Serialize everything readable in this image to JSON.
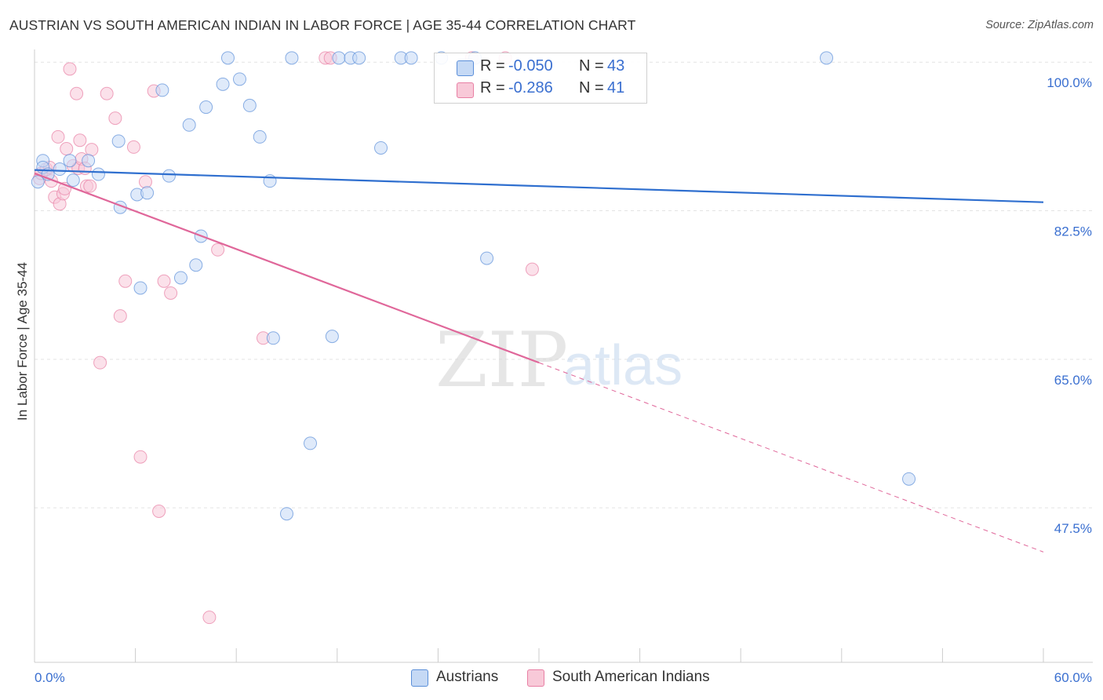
{
  "title": "AUSTRIAN VS SOUTH AMERICAN INDIAN IN LABOR FORCE | AGE 35-44 CORRELATION CHART",
  "source": "Source: ZipAtlas.com",
  "watermark": {
    "zip": "ZIP",
    "atlas": "atlas"
  },
  "legend": {
    "rows": [
      {
        "r_label": "R =",
        "r_value": "-0.050",
        "n_label": "N =",
        "n_value": "43"
      },
      {
        "r_label": "R =",
        "r_value": "-0.286",
        "n_label": "N =",
        "n_value": "41"
      }
    ]
  },
  "colors": {
    "austrians": "#5b8fd9",
    "austrians_fill": "#c5d9f5",
    "south_american_indians": "#e87fa4",
    "south_american_indians_fill": "#f8c9d8",
    "axis_label": "#3a6fd0",
    "grid": "#e3e3e3"
  },
  "chart_data": {
    "type": "scatter",
    "title": "AUSTRIAN VS SOUTH AMERICAN INDIAN IN LABOR FORCE | AGE 35-44 CORRELATION CHART",
    "xlabel": "",
    "ylabel": "In Labor Force | Age 35-44",
    "xlim": [
      0,
      60
    ],
    "ylim": [
      29.3,
      101.5
    ],
    "x_tick_labels": [
      "0.0%",
      "60.0%"
    ],
    "y_ticks": [
      47.5,
      65.0,
      82.5,
      100.0
    ],
    "y_tick_labels": [
      "47.5%",
      "65.0%",
      "82.5%",
      "100.0%"
    ],
    "grid": true,
    "legend_position": "bottom-center",
    "series": [
      {
        "name": "Austrians",
        "r": -0.05,
        "n": 43,
        "trend": {
          "x0": 0,
          "y0": 87.3,
          "x1": 60,
          "y1": 83.5
        },
        "points": [
          [
            0.2,
            85.9
          ],
          [
            0.5,
            88.4
          ],
          [
            0.5,
            87.6
          ],
          [
            0.8,
            86.8
          ],
          [
            1.5,
            87.4
          ],
          [
            2.1,
            88.4
          ],
          [
            3.2,
            88.4
          ],
          [
            2.3,
            86.1
          ],
          [
            3.8,
            86.8
          ],
          [
            5.0,
            90.7
          ],
          [
            6.1,
            84.4
          ],
          [
            5.1,
            82.9
          ],
          [
            6.7,
            84.6
          ],
          [
            6.3,
            73.4
          ],
          [
            7.6,
            96.7
          ],
          [
            8.0,
            86.6
          ],
          [
            8.7,
            74.6
          ],
          [
            9.2,
            92.6
          ],
          [
            9.6,
            76.1
          ],
          [
            9.9,
            79.5
          ],
          [
            10.2,
            94.7
          ],
          [
            11.2,
            97.4
          ],
          [
            11.5,
            100.5
          ],
          [
            12.2,
            98.0
          ],
          [
            12.8,
            94.9
          ],
          [
            13.4,
            91.2
          ],
          [
            14.0,
            86.0
          ],
          [
            14.2,
            67.5
          ],
          [
            15.3,
            100.5
          ],
          [
            15.0,
            46.8
          ],
          [
            16.4,
            55.1
          ],
          [
            17.7,
            67.7
          ],
          [
            18.1,
            100.5
          ],
          [
            18.8,
            100.5
          ],
          [
            19.3,
            100.5
          ],
          [
            20.6,
            89.9
          ],
          [
            21.8,
            100.5
          ],
          [
            22.4,
            100.5
          ],
          [
            24.2,
            100.5
          ],
          [
            26.2,
            100.5
          ],
          [
            26.9,
            76.9
          ],
          [
            47.1,
            100.5
          ],
          [
            52.0,
            50.9
          ]
        ]
      },
      {
        "name": "South American Indians",
        "r": -0.286,
        "n": 41,
        "trend": {
          "x0": 0,
          "y0": 86.9,
          "x1": 60,
          "y1": 42.3
        },
        "trend_solid_until_x": 30.0,
        "points": [
          [
            0.3,
            86.3
          ],
          [
            0.4,
            86.9
          ],
          [
            0.7,
            87.4
          ],
          [
            0.9,
            87.6
          ],
          [
            1.0,
            86.0
          ],
          [
            1.2,
            84.1
          ],
          [
            1.4,
            91.2
          ],
          [
            1.5,
            83.3
          ],
          [
            1.7,
            84.5
          ],
          [
            1.8,
            85.1
          ],
          [
            1.9,
            89.8
          ],
          [
            2.1,
            99.2
          ],
          [
            2.3,
            87.8
          ],
          [
            2.5,
            96.3
          ],
          [
            2.6,
            87.5
          ],
          [
            2.7,
            90.8
          ],
          [
            2.8,
            88.6
          ],
          [
            3.0,
            87.5
          ],
          [
            3.1,
            85.4
          ],
          [
            3.3,
            85.4
          ],
          [
            3.4,
            89.7
          ],
          [
            3.9,
            64.6
          ],
          [
            4.3,
            96.3
          ],
          [
            4.8,
            93.4
          ],
          [
            5.1,
            70.1
          ],
          [
            5.4,
            74.2
          ],
          [
            5.9,
            90.0
          ],
          [
            6.3,
            53.5
          ],
          [
            6.6,
            85.9
          ],
          [
            7.1,
            96.6
          ],
          [
            7.4,
            47.1
          ],
          [
            7.7,
            74.2
          ],
          [
            8.1,
            72.8
          ],
          [
            10.4,
            34.6
          ],
          [
            10.9,
            77.9
          ],
          [
            13.6,
            67.5
          ],
          [
            17.3,
            100.5
          ],
          [
            17.6,
            100.5
          ],
          [
            26.0,
            100.5
          ],
          [
            28.0,
            100.5
          ],
          [
            29.6,
            75.6
          ]
        ]
      }
    ]
  },
  "bottom_legend": {
    "austrians": "Austrians",
    "south_american_indians": "South American Indians"
  }
}
